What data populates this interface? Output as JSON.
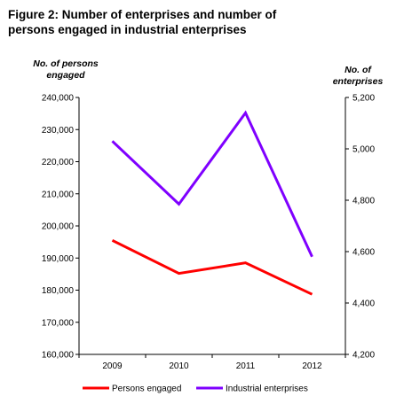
{
  "title_line1": "Figure 2:  Number of enterprises  and number of",
  "title_line2": "persons  engaged in industrial enterprises",
  "chart_data": {
    "type": "line",
    "categories": [
      "2009",
      "2010",
      "2011",
      "2012"
    ],
    "ylabel_left": [
      "No. of persons",
      "engaged"
    ],
    "ylabel_right": [
      "No. of",
      "enterprises"
    ],
    "ylim_left": [
      160000,
      240000
    ],
    "ylim_right": [
      4200,
      5200
    ],
    "yticks_left": [
      "160,000",
      "170,000",
      "180,000",
      "190,000",
      "200,000",
      "210,000",
      "220,000",
      "230,000",
      "240,000"
    ],
    "yticks_right": [
      "4,200",
      "4,400",
      "4,600",
      "4,800",
      "5,000",
      "5,200"
    ],
    "grid": false,
    "legend_position": "bottom",
    "series": [
      {
        "name": "Persons engaged",
        "axis": "left",
        "color": "#ff0000",
        "values": [
          195500,
          185200,
          188500,
          178700
        ]
      },
      {
        "name": "Industrial enterprises",
        "axis": "right",
        "color": "#7f00ff",
        "values": [
          5030,
          4785,
          5140,
          4580
        ]
      }
    ]
  }
}
